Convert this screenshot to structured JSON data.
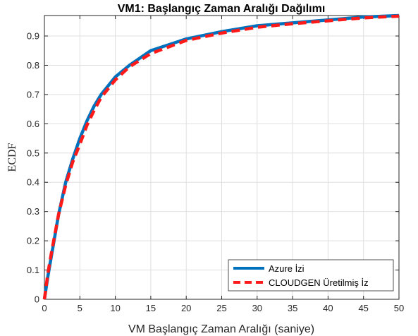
{
  "chart_data": {
    "type": "line",
    "title": "VM1: Başlangıç Zaman Aralığı Dağılımı",
    "xlabel": "VM Başlangıç Zaman Aralığı (saniye)",
    "ylabel": "ECDF",
    "xlim": [
      0,
      50
    ],
    "ylim": [
      0,
      0.97
    ],
    "xticks": [
      0,
      5,
      10,
      15,
      20,
      25,
      30,
      35,
      40,
      45,
      50
    ],
    "xtick_labels": [
      "0",
      "5",
      "10",
      "15",
      "20",
      "25",
      "30",
      "35",
      "40",
      "45",
      "50"
    ],
    "yticks": [
      0,
      0.1,
      0.2,
      0.3,
      0.4,
      0.5,
      0.6,
      0.7,
      0.8,
      0.9
    ],
    "ytick_labels": [
      "0",
      "0.1",
      "0.2",
      "0.3",
      "0.4",
      "0.5",
      "0.6",
      "0.7",
      "0.8",
      "0.9"
    ],
    "grid": true,
    "legend_position": "bottom-right",
    "series": [
      {
        "name": "Azure İzi",
        "color": "#0072BD",
        "style": "solid",
        "x": [
          0,
          0.5,
          1,
          2,
          3,
          4,
          5,
          6,
          7,
          8,
          10,
          12,
          15,
          20,
          25,
          30,
          35,
          40,
          45,
          50
        ],
        "y": [
          0,
          0.08,
          0.15,
          0.29,
          0.4,
          0.48,
          0.55,
          0.61,
          0.66,
          0.7,
          0.76,
          0.8,
          0.85,
          0.89,
          0.915,
          0.935,
          0.945,
          0.955,
          0.965,
          0.97
        ]
      },
      {
        "name": "CLOUDGEN Üretilmiş İz",
        "color": "#FF1A1A",
        "style": "dashed",
        "x": [
          0,
          0.5,
          1,
          2,
          3,
          4,
          5,
          6,
          7,
          8,
          10,
          12,
          15,
          20,
          25,
          30,
          35,
          40,
          45,
          50
        ],
        "y": [
          0,
          0.09,
          0.16,
          0.29,
          0.39,
          0.47,
          0.53,
          0.595,
          0.645,
          0.69,
          0.75,
          0.795,
          0.84,
          0.885,
          0.91,
          0.93,
          0.942,
          0.952,
          0.962,
          0.968
        ]
      }
    ]
  }
}
